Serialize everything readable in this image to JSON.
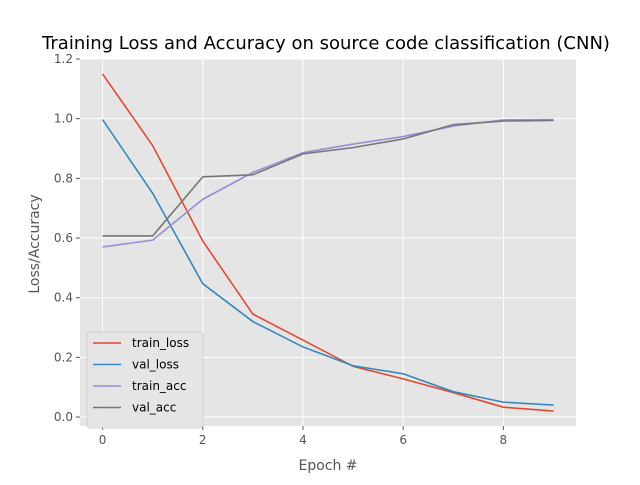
{
  "chart_data": {
    "type": "line",
    "title": "Training Loss and Accuracy on source code classification (CNN)",
    "xlabel": "Epoch #",
    "ylabel": "Loss/Accuracy",
    "xlim": [
      -0.45,
      9.45
    ],
    "ylim": [
      -0.03,
      1.2
    ],
    "xticks": [
      0,
      2,
      4,
      6,
      8
    ],
    "yticks": [
      0.0,
      0.2,
      0.4,
      0.6,
      0.8,
      1.0,
      1.2
    ],
    "xtick_labels": [
      "0",
      "2",
      "4",
      "6",
      "8"
    ],
    "ytick_labels": [
      "0.0",
      "0.2",
      "0.4",
      "0.6",
      "0.8",
      "1.0",
      "1.2"
    ],
    "grid": true,
    "background": "#e5e5e5",
    "grid_color": "#ffffff",
    "legend_position": "lower-left",
    "x": [
      0,
      1,
      2,
      3,
      4,
      5,
      6,
      7,
      8,
      9
    ],
    "series": [
      {
        "name": "train_loss",
        "color": "#e24a33",
        "values": [
          1.15,
          0.91,
          0.59,
          0.345,
          0.258,
          0.17,
          0.128,
          0.082,
          0.033,
          0.02
        ]
      },
      {
        "name": "val_loss",
        "color": "#348abd",
        "values": [
          0.997,
          0.75,
          0.447,
          0.32,
          0.235,
          0.172,
          0.145,
          0.085,
          0.05,
          0.04
        ]
      },
      {
        "name": "train_acc",
        "color": "#988ed5",
        "values": [
          0.57,
          0.593,
          0.73,
          0.82,
          0.886,
          0.915,
          0.94,
          0.975,
          0.996,
          0.997
        ]
      },
      {
        "name": "val_acc",
        "color": "#777777",
        "values": [
          0.607,
          0.607,
          0.805,
          0.812,
          0.882,
          0.903,
          0.932,
          0.98,
          0.992,
          0.994
        ]
      }
    ]
  }
}
